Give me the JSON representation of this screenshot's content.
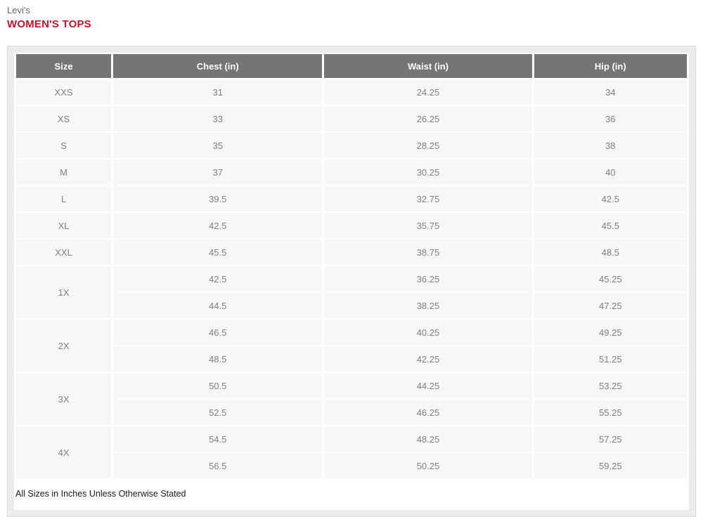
{
  "header": {
    "brand": "Levi's",
    "title": "WOMEN'S TOPS"
  },
  "table": {
    "headers": [
      "Size",
      "Chest (in)",
      "Waist (in)",
      "Hip (in)"
    ],
    "groups": [
      {
        "size": "XXS",
        "rows": [
          [
            "31",
            "24.25",
            "34"
          ]
        ]
      },
      {
        "size": "XS",
        "rows": [
          [
            "33",
            "26.25",
            "36"
          ]
        ]
      },
      {
        "size": "S",
        "rows": [
          [
            "35",
            "28.25",
            "38"
          ]
        ]
      },
      {
        "size": "M",
        "rows": [
          [
            "37",
            "30.25",
            "40"
          ]
        ]
      },
      {
        "size": "L",
        "rows": [
          [
            "39.5",
            "32.75",
            "42.5"
          ]
        ]
      },
      {
        "size": "XL",
        "rows": [
          [
            "42.5",
            "35.75",
            "45.5"
          ]
        ]
      },
      {
        "size": "XXL",
        "rows": [
          [
            "45.5",
            "38.75",
            "48.5"
          ]
        ]
      },
      {
        "size": "1X",
        "rows": [
          [
            "42.5",
            "36.25",
            "45.25"
          ],
          [
            "44.5",
            "38.25",
            "47.25"
          ]
        ]
      },
      {
        "size": "2X",
        "rows": [
          [
            "46.5",
            "40.25",
            "49.25"
          ],
          [
            "48.5",
            "42.25",
            "51.25"
          ]
        ]
      },
      {
        "size": "3X",
        "rows": [
          [
            "50.5",
            "44.25",
            "53.25"
          ],
          [
            "52.5",
            "46.25",
            "55.25"
          ]
        ]
      },
      {
        "size": "4X",
        "rows": [
          [
            "54.5",
            "48.25",
            "57.25"
          ],
          [
            "56.5",
            "50.25",
            "59.25"
          ]
        ]
      }
    ],
    "footnote": "All Sizes in Inches Unless Otherwise Stated"
  },
  "colors": {
    "brand_red": "#c8102e",
    "header_bg": "#757575",
    "header_text": "#ffffff",
    "cell_bg": "#f7f7f7",
    "cell_text": "#7f7f7f",
    "card_bg": "#ececec",
    "card_border": "#dcdcdc",
    "note_text": "#1a1a1a"
  }
}
